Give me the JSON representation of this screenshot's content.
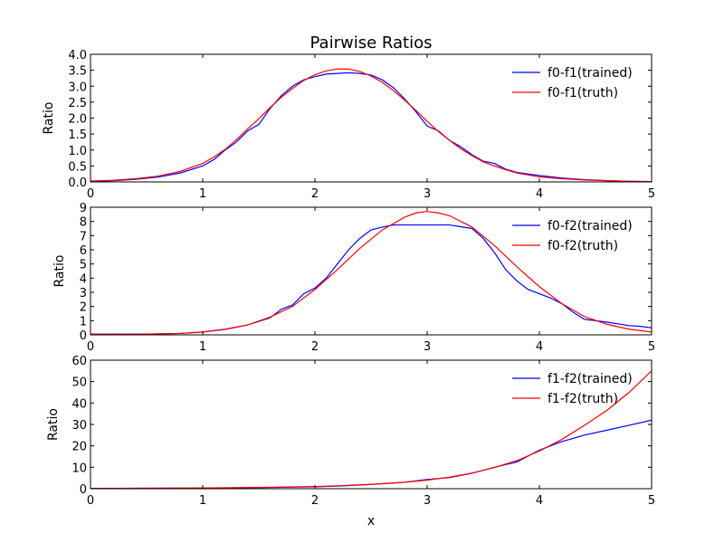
{
  "figure": {
    "title": "Pairwise Ratios",
    "xlabel": "x"
  },
  "chart_data": [
    {
      "type": "line",
      "ylabel": "Ratio",
      "xlim": [
        0,
        5
      ],
      "ylim": [
        0,
        4
      ],
      "xticks": [
        "0",
        "1",
        "2",
        "3",
        "4",
        "5"
      ],
      "yticks": [
        "0.0",
        "0.5",
        "1.0",
        "1.5",
        "2.0",
        "2.5",
        "3.0",
        "3.5",
        "4.0"
      ],
      "grid": false,
      "legend": "top-right",
      "series": [
        {
          "name": "f0-f1(trained)",
          "color": "#0000ff",
          "x": [
            0,
            0.2,
            0.4,
            0.6,
            0.8,
            1.0,
            1.1,
            1.2,
            1.3,
            1.4,
            1.5,
            1.6,
            1.7,
            1.8,
            1.9,
            2.0,
            2.1,
            2.2,
            2.3,
            2.4,
            2.5,
            2.6,
            2.7,
            2.8,
            2.9,
            3.0,
            3.1,
            3.2,
            3.3,
            3.4,
            3.5,
            3.6,
            3.7,
            3.8,
            4.0,
            4.2,
            4.4,
            4.6,
            4.8,
            5.0
          ],
          "y": [
            0.02,
            0.04,
            0.08,
            0.15,
            0.28,
            0.5,
            0.7,
            1.0,
            1.25,
            1.6,
            1.8,
            2.3,
            2.7,
            3.0,
            3.2,
            3.3,
            3.38,
            3.4,
            3.42,
            3.4,
            3.35,
            3.2,
            2.95,
            2.6,
            2.2,
            1.75,
            1.6,
            1.3,
            1.1,
            0.85,
            0.65,
            0.58,
            0.4,
            0.3,
            0.2,
            0.12,
            0.07,
            0.04,
            0.02,
            0.01
          ]
        },
        {
          "name": "f0-f1(truth)",
          "color": "#ff0000",
          "x": [
            0,
            0.2,
            0.4,
            0.6,
            0.8,
            1.0,
            1.1,
            1.2,
            1.3,
            1.4,
            1.5,
            1.6,
            1.7,
            1.8,
            1.9,
            2.0,
            2.1,
            2.2,
            2.3,
            2.4,
            2.5,
            2.6,
            2.7,
            2.8,
            2.9,
            3.0,
            3.1,
            3.2,
            3.3,
            3.4,
            3.5,
            3.6,
            3.7,
            3.8,
            4.0,
            4.2,
            4.4,
            4.6,
            4.8,
            5.0
          ],
          "y": [
            0.03,
            0.05,
            0.1,
            0.18,
            0.33,
            0.58,
            0.78,
            1.02,
            1.32,
            1.66,
            1.98,
            2.33,
            2.65,
            2.93,
            3.18,
            3.36,
            3.48,
            3.54,
            3.54,
            3.46,
            3.32,
            3.12,
            2.86,
            2.56,
            2.24,
            1.9,
            1.58,
            1.3,
            1.04,
            0.82,
            0.63,
            0.5,
            0.38,
            0.28,
            0.16,
            0.1,
            0.06,
            0.04,
            0.02,
            0.01
          ]
        }
      ]
    },
    {
      "type": "line",
      "ylabel": "Ratio",
      "xlim": [
        0,
        5
      ],
      "ylim": [
        0,
        9
      ],
      "xticks": [
        "0",
        "1",
        "2",
        "3",
        "4",
        "5"
      ],
      "yticks": [
        "0",
        "1",
        "2",
        "3",
        "4",
        "5",
        "6",
        "7",
        "8",
        "9"
      ],
      "grid": false,
      "legend": "top-right",
      "series": [
        {
          "name": "f0-f2(trained)",
          "color": "#0000ff",
          "x": [
            0,
            0.5,
            0.8,
            1.0,
            1.2,
            1.4,
            1.6,
            1.7,
            1.8,
            1.9,
            2.0,
            2.1,
            2.2,
            2.3,
            2.4,
            2.5,
            2.6,
            2.7,
            2.8,
            3.0,
            3.2,
            3.4,
            3.5,
            3.6,
            3.7,
            3.8,
            3.9,
            4.0,
            4.1,
            4.2,
            4.3,
            4.4,
            4.6,
            4.8,
            4.9,
            5.0
          ],
          "y": [
            0.05,
            0.06,
            0.1,
            0.2,
            0.4,
            0.7,
            1.2,
            1.8,
            2.1,
            2.9,
            3.3,
            4.0,
            5.0,
            6.0,
            6.8,
            7.4,
            7.6,
            7.75,
            7.75,
            7.75,
            7.75,
            7.5,
            6.8,
            5.8,
            4.6,
            3.8,
            3.2,
            2.9,
            2.6,
            2.2,
            1.6,
            1.1,
            0.9,
            0.65,
            0.6,
            0.5
          ]
        },
        {
          "name": "f0-f2(truth)",
          "color": "#ff0000",
          "x": [
            0,
            0.5,
            0.8,
            1.0,
            1.2,
            1.4,
            1.6,
            1.8,
            2.0,
            2.2,
            2.4,
            2.6,
            2.8,
            2.9,
            3.0,
            3.1,
            3.2,
            3.4,
            3.6,
            3.8,
            4.0,
            4.2,
            4.4,
            4.6,
            4.8,
            5.0
          ],
          "y": [
            0.03,
            0.05,
            0.1,
            0.2,
            0.38,
            0.7,
            1.25,
            2.0,
            3.2,
            4.6,
            6.1,
            7.4,
            8.3,
            8.6,
            8.7,
            8.6,
            8.4,
            7.6,
            6.3,
            4.8,
            3.4,
            2.2,
            1.3,
            0.75,
            0.4,
            0.2
          ]
        }
      ]
    },
    {
      "type": "line",
      "ylabel": "Ratio",
      "xlim": [
        0,
        5
      ],
      "ylim": [
        0,
        60
      ],
      "xticks": [
        "0",
        "1",
        "2",
        "3",
        "4",
        "5"
      ],
      "yticks": [
        "0",
        "10",
        "20",
        "30",
        "40",
        "50",
        "60"
      ],
      "grid": false,
      "legend": "top-right",
      "series": [
        {
          "name": "f1-f2(trained)",
          "color": "#0000ff",
          "x": [
            0,
            0.5,
            1.0,
            1.5,
            2.0,
            2.2,
            2.5,
            2.8,
            3.0,
            3.2,
            3.4,
            3.6,
            3.8,
            4.0,
            4.2,
            4.4,
            4.6,
            4.8,
            5.0
          ],
          "y": [
            0.1,
            0.2,
            0.3,
            0.5,
            0.9,
            1.2,
            2.0,
            3.0,
            4.3,
            5.2,
            7.2,
            10.0,
            12.5,
            18.0,
            22.0,
            25.0,
            27.3,
            29.6,
            32.0
          ]
        },
        {
          "name": "f1-f2(truth)",
          "color": "#ff0000",
          "x": [
            0,
            0.5,
            1.0,
            1.5,
            2.0,
            2.2,
            2.5,
            2.8,
            3.0,
            3.2,
            3.4,
            3.6,
            3.8,
            4.0,
            4.2,
            4.4,
            4.6,
            4.8,
            5.0
          ],
          "y": [
            0.1,
            0.2,
            0.35,
            0.6,
            1.0,
            1.35,
            2.0,
            3.0,
            4.0,
            5.4,
            7.3,
            9.9,
            13.1,
            17.6,
            23.0,
            29.5,
            36.5,
            45.0,
            55.0
          ]
        }
      ]
    }
  ]
}
